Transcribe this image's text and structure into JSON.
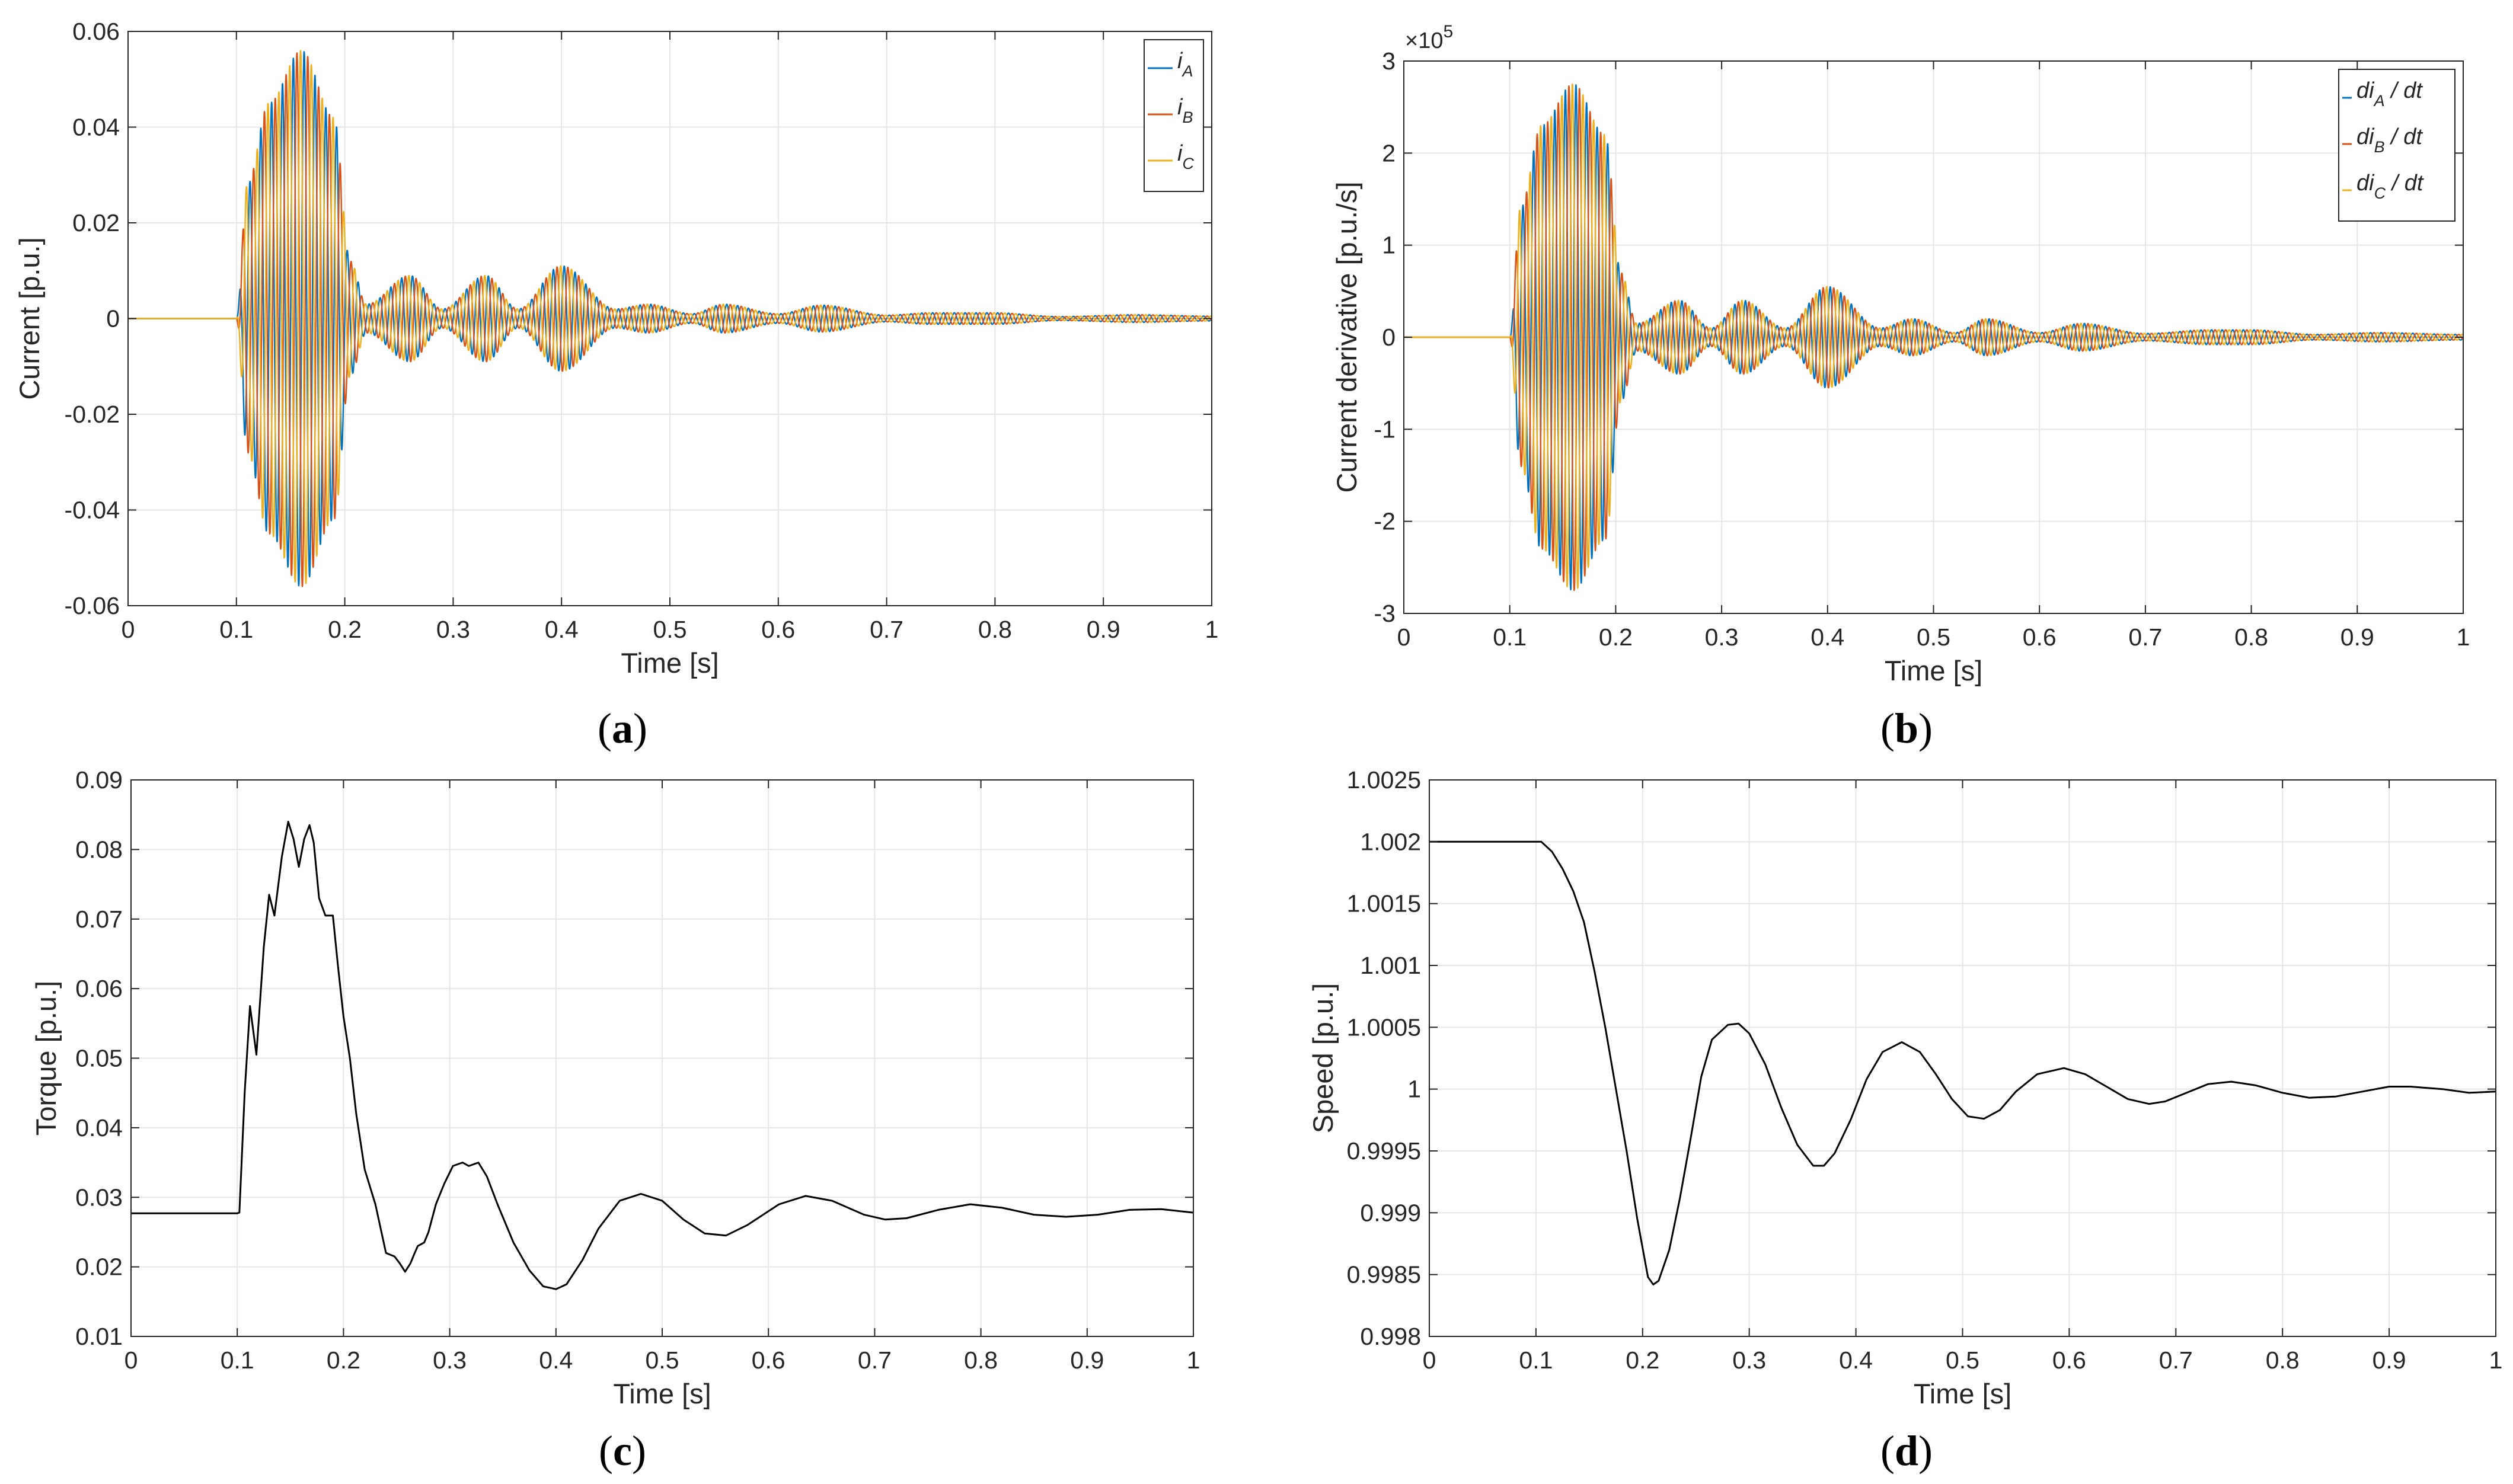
{
  "colors": {
    "blue": "#0072BD",
    "red": "#D95319",
    "yellow": "#EDB120",
    "black": "#000000",
    "grid": "#e6e6e6",
    "axis": "#262626"
  },
  "chart_data": [
    {
      "id": "a",
      "type": "line",
      "caption_letter": "a",
      "xlabel": "Time [s]",
      "ylabel": "Current [p.u.]",
      "xlim": [
        0,
        1
      ],
      "ylim": [
        -0.06,
        0.06
      ],
      "xticks": [
        0,
        0.1,
        0.2,
        0.3,
        0.4,
        0.5,
        0.6,
        0.7,
        0.8,
        0.9,
        1
      ],
      "xtick_labels": [
        "0",
        "0.1",
        "0.2",
        "0.3",
        "0.4",
        "0.5",
        "0.6",
        "0.7",
        "0.8",
        "0.9",
        "1"
      ],
      "yticks": [
        -0.06,
        -0.04,
        -0.02,
        0,
        0.02,
        0.04,
        0.06
      ],
      "ytick_labels": [
        "-0.06",
        "-0.04",
        "-0.02",
        "0",
        "0.02",
        "0.04",
        "0.06"
      ],
      "legend_position": "top-right",
      "legend": [
        {
          "base": "i",
          "sub": "A",
          "after": ""
        },
        {
          "base": "i",
          "sub": "B",
          "after": ""
        },
        {
          "base": "i",
          "sub": "C",
          "after": ""
        }
      ],
      "series": [
        {
          "name": "iA",
          "color": "blue",
          "phase_deg": 0
        },
        {
          "name": "iB",
          "color": "red",
          "phase_deg": -120
        },
        {
          "name": "iC",
          "color": "yellow",
          "phase_deg": 120
        }
      ],
      "start_time": 0.1,
      "frequency_hz": 100,
      "envelope": [
        [
          0.1,
          0.0
        ],
        [
          0.11,
          0.028
        ],
        [
          0.13,
          0.045
        ],
        [
          0.16,
          0.056
        ],
        [
          0.19,
          0.042
        ],
        [
          0.205,
          0.012
        ],
        [
          0.22,
          0.003
        ],
        [
          0.26,
          0.009
        ],
        [
          0.29,
          0.002
        ],
        [
          0.33,
          0.009
        ],
        [
          0.36,
          0.002
        ],
        [
          0.4,
          0.011
        ],
        [
          0.45,
          0.002
        ],
        [
          0.48,
          0.003
        ],
        [
          0.52,
          0.001
        ],
        [
          0.55,
          0.003
        ],
        [
          0.6,
          0.001
        ],
        [
          0.64,
          0.0028
        ],
        [
          0.7,
          0.0007
        ],
        [
          0.74,
          0.0012
        ],
        [
          0.8,
          0.0012
        ],
        [
          0.86,
          0.0004
        ],
        [
          0.93,
          0.0008
        ],
        [
          1.0,
          0.0005
        ]
      ]
    },
    {
      "id": "b",
      "type": "line",
      "caption_letter": "b",
      "xlabel": "Time [s]",
      "ylabel": "Current derivative [p.u./s]",
      "exponent_label": "×10",
      "exponent_power": "5",
      "xlim": [
        0,
        1
      ],
      "ylim": [
        -3,
        3
      ],
      "xticks": [
        0,
        0.1,
        0.2,
        0.3,
        0.4,
        0.5,
        0.6,
        0.7,
        0.8,
        0.9,
        1
      ],
      "xtick_labels": [
        "0",
        "0.1",
        "0.2",
        "0.3",
        "0.4",
        "0.5",
        "0.6",
        "0.7",
        "0.8",
        "0.9",
        "1"
      ],
      "yticks": [
        -3,
        -2,
        -1,
        0,
        1,
        2,
        3
      ],
      "ytick_labels": [
        "-3",
        "-2",
        "-1",
        "0",
        "1",
        "2",
        "3"
      ],
      "legend_position": "top-right",
      "legend": [
        {
          "base": "di",
          "sub": "A",
          "after": " / dt"
        },
        {
          "base": "di",
          "sub": "B",
          "after": " / dt"
        },
        {
          "base": "di",
          "sub": "C",
          "after": " / dt"
        }
      ],
      "series": [
        {
          "name": "diA/dt",
          "color": "blue",
          "phase_deg": 0
        },
        {
          "name": "diB/dt",
          "color": "red",
          "phase_deg": -120
        },
        {
          "name": "diC/dt",
          "color": "yellow",
          "phase_deg": 120
        }
      ],
      "start_time": 0.1,
      "frequency_hz": 100,
      "envelope": [
        [
          0.1,
          0.0
        ],
        [
          0.11,
          1.4
        ],
        [
          0.13,
          2.3
        ],
        [
          0.16,
          2.75
        ],
        [
          0.19,
          2.2
        ],
        [
          0.205,
          0.7
        ],
        [
          0.22,
          0.15
        ],
        [
          0.26,
          0.4
        ],
        [
          0.29,
          0.1
        ],
        [
          0.32,
          0.4
        ],
        [
          0.36,
          0.1
        ],
        [
          0.4,
          0.55
        ],
        [
          0.45,
          0.1
        ],
        [
          0.48,
          0.2
        ],
        [
          0.52,
          0.05
        ],
        [
          0.55,
          0.2
        ],
        [
          0.6,
          0.05
        ],
        [
          0.64,
          0.15
        ],
        [
          0.7,
          0.04
        ],
        [
          0.76,
          0.08
        ],
        [
          0.8,
          0.08
        ],
        [
          0.86,
          0.03
        ],
        [
          0.92,
          0.05
        ],
        [
          1.0,
          0.03
        ]
      ]
    },
    {
      "id": "c",
      "type": "line",
      "caption_letter": "c",
      "xlabel": "Time [s]",
      "ylabel": "Torque [p.u.]",
      "xlim": [
        0,
        1
      ],
      "ylim": [
        0.01,
        0.09
      ],
      "xticks": [
        0,
        0.1,
        0.2,
        0.3,
        0.4,
        0.5,
        0.6,
        0.7,
        0.8,
        0.9,
        1
      ],
      "xtick_labels": [
        "0",
        "0.1",
        "0.2",
        "0.3",
        "0.4",
        "0.5",
        "0.6",
        "0.7",
        "0.8",
        "0.9",
        "1"
      ],
      "yticks": [
        0.01,
        0.02,
        0.03,
        0.04,
        0.05,
        0.06,
        0.07,
        0.08,
        0.09
      ],
      "ytick_labels": [
        "0.01",
        "0.02",
        "0.03",
        "0.04",
        "0.05",
        "0.06",
        "0.07",
        "0.08",
        "0.09"
      ],
      "series": [
        {
          "name": "Torque",
          "color": "black",
          "points": [
            [
              0,
              0.0277
            ],
            [
              0.1,
              0.0277
            ],
            [
              0.102,
              0.0278
            ],
            [
              0.107,
              0.045
            ],
            [
              0.112,
              0.0575
            ],
            [
              0.118,
              0.0505
            ],
            [
              0.125,
              0.066
            ],
            [
              0.13,
              0.0735
            ],
            [
              0.135,
              0.0705
            ],
            [
              0.142,
              0.079
            ],
            [
              0.148,
              0.084
            ],
            [
              0.153,
              0.0815
            ],
            [
              0.158,
              0.0775
            ],
            [
              0.163,
              0.0815
            ],
            [
              0.168,
              0.0835
            ],
            [
              0.172,
              0.081
            ],
            [
              0.177,
              0.073
            ],
            [
              0.183,
              0.0705
            ],
            [
              0.19,
              0.0705
            ],
            [
              0.195,
              0.063
            ],
            [
              0.2,
              0.056
            ],
            [
              0.206,
              0.05
            ],
            [
              0.212,
              0.042
            ],
            [
              0.22,
              0.034
            ],
            [
              0.23,
              0.029
            ],
            [
              0.24,
              0.022
            ],
            [
              0.248,
              0.0215
            ],
            [
              0.253,
              0.0205
            ],
            [
              0.258,
              0.0193
            ],
            [
              0.263,
              0.0205
            ],
            [
              0.267,
              0.022
            ],
            [
              0.27,
              0.023
            ],
            [
              0.276,
              0.0235
            ],
            [
              0.28,
              0.025
            ],
            [
              0.287,
              0.029
            ],
            [
              0.295,
              0.032
            ],
            [
              0.303,
              0.0345
            ],
            [
              0.312,
              0.035
            ],
            [
              0.318,
              0.0345
            ],
            [
              0.327,
              0.035
            ],
            [
              0.335,
              0.033
            ],
            [
              0.345,
              0.029
            ],
            [
              0.36,
              0.0235
            ],
            [
              0.375,
              0.0195
            ],
            [
              0.388,
              0.0172
            ],
            [
              0.4,
              0.0168
            ],
            [
              0.41,
              0.0175
            ],
            [
              0.425,
              0.021
            ],
            [
              0.44,
              0.0255
            ],
            [
              0.46,
              0.0295
            ],
            [
              0.48,
              0.0305
            ],
            [
              0.5,
              0.0295
            ],
            [
              0.52,
              0.0268
            ],
            [
              0.54,
              0.0248
            ],
            [
              0.56,
              0.0245
            ],
            [
              0.58,
              0.026
            ],
            [
              0.61,
              0.029
            ],
            [
              0.635,
              0.0302
            ],
            [
              0.66,
              0.0295
            ],
            [
              0.69,
              0.0275
            ],
            [
              0.71,
              0.0268
            ],
            [
              0.73,
              0.027
            ],
            [
              0.76,
              0.0282
            ],
            [
              0.79,
              0.029
            ],
            [
              0.82,
              0.0285
            ],
            [
              0.85,
              0.0275
            ],
            [
              0.88,
              0.0272
            ],
            [
              0.91,
              0.0275
            ],
            [
              0.94,
              0.0282
            ],
            [
              0.97,
              0.0283
            ],
            [
              1.0,
              0.0278
            ]
          ]
        }
      ]
    },
    {
      "id": "d",
      "type": "line",
      "caption_letter": "d",
      "xlabel": "Time [s]",
      "ylabel": "Speed [p.u.]",
      "xlim": [
        0,
        1
      ],
      "ylim": [
        0.998,
        1.0025
      ],
      "xticks": [
        0,
        0.1,
        0.2,
        0.3,
        0.4,
        0.5,
        0.6,
        0.7,
        0.8,
        0.9,
        1
      ],
      "xtick_labels": [
        "0",
        "0.1",
        "0.2",
        "0.3",
        "0.4",
        "0.5",
        "0.6",
        "0.7",
        "0.8",
        "0.9",
        "1"
      ],
      "yticks": [
        0.998,
        0.9985,
        0.999,
        0.9995,
        1,
        1.0005,
        1.001,
        1.0015,
        1.002,
        1.0025
      ],
      "ytick_labels": [
        "0.998",
        "0.9985",
        "0.999",
        "0.9995",
        "1",
        "1.0005",
        "1.001",
        "1.0015",
        "1.002",
        "1.0025"
      ],
      "series": [
        {
          "name": "Speed",
          "color": "black",
          "points": [
            [
              0,
              1.002
            ],
            [
              0.105,
              1.002
            ],
            [
              0.115,
              1.00192
            ],
            [
              0.125,
              1.00178
            ],
            [
              0.135,
              1.0016
            ],
            [
              0.145,
              1.00135
            ],
            [
              0.155,
              1.00095
            ],
            [
              0.165,
              1.0005
            ],
            [
              0.175,
              1.0
            ],
            [
              0.185,
              0.9995
            ],
            [
              0.195,
              0.99895
            ],
            [
              0.205,
              0.99848
            ],
            [
              0.21,
              0.99842
            ],
            [
              0.215,
              0.99845
            ],
            [
              0.225,
              0.9987
            ],
            [
              0.235,
              0.99912
            ],
            [
              0.245,
              0.9996
            ],
            [
              0.255,
              1.0001
            ],
            [
              0.265,
              1.0004
            ],
            [
              0.28,
              1.00052
            ],
            [
              0.29,
              1.00053
            ],
            [
              0.3,
              1.00045
            ],
            [
              0.315,
              1.0002
            ],
            [
              0.33,
              0.99985
            ],
            [
              0.345,
              0.99955
            ],
            [
              0.36,
              0.99938
            ],
            [
              0.37,
              0.99938
            ],
            [
              0.38,
              0.99948
            ],
            [
              0.395,
              0.99975
            ],
            [
              0.41,
              1.00008
            ],
            [
              0.425,
              1.0003
            ],
            [
              0.443,
              1.00038
            ],
            [
              0.46,
              1.0003
            ],
            [
              0.475,
              1.00012
            ],
            [
              0.49,
              0.99992
            ],
            [
              0.505,
              0.99978
            ],
            [
              0.52,
              0.99976
            ],
            [
              0.535,
              0.99983
            ],
            [
              0.55,
              0.99998
            ],
            [
              0.57,
              1.00012
            ],
            [
              0.595,
              1.00017
            ],
            [
              0.615,
              1.00012
            ],
            [
              0.635,
              1.00002
            ],
            [
              0.655,
              0.99992
            ],
            [
              0.675,
              0.99988
            ],
            [
              0.69,
              0.9999
            ],
            [
              0.71,
              0.99997
            ],
            [
              0.73,
              1.00004
            ],
            [
              0.752,
              1.00006
            ],
            [
              0.775,
              1.00003
            ],
            [
              0.8,
              0.99997
            ],
            [
              0.825,
              0.99993
            ],
            [
              0.85,
              0.99994
            ],
            [
              0.875,
              0.99998
            ],
            [
              0.9,
              1.00002
            ],
            [
              0.92,
              1.00002
            ],
            [
              0.95,
              1.0
            ],
            [
              0.975,
              0.99997
            ],
            [
              1.0,
              0.99998
            ]
          ]
        }
      ]
    }
  ]
}
